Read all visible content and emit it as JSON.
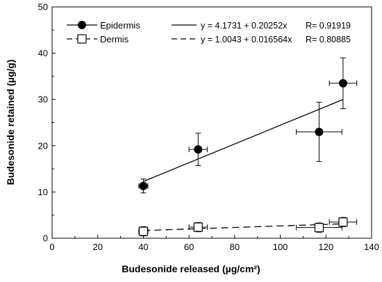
{
  "chart_data": {
    "type": "scatter",
    "title": "",
    "xlabel": "Budesonide released (µg/cm²)",
    "ylabel": "Budesonide retained (µg/g)",
    "xlim": [
      0,
      140
    ],
    "ylim": [
      0,
      50
    ],
    "xticks": [
      "0",
      "20",
      "40",
      "60",
      "80",
      "100",
      "120",
      "140"
    ],
    "yticks": [
      "0",
      "10",
      "20",
      "30",
      "40",
      "50"
    ],
    "grid": false,
    "legend_position": "top-left",
    "series": [
      {
        "name": "Epidermis",
        "marker": "filled-circle",
        "line_style": "solid",
        "color": "#000000",
        "points": [
          {
            "x": 40,
            "y": 11.3,
            "xerr": 2,
            "yerr": 1.5
          },
          {
            "x": 64,
            "y": 19.2,
            "xerr": 4,
            "yerr": 3.5
          },
          {
            "x": 117,
            "y": 23.0,
            "xerr": 10,
            "yerr": 6.4
          },
          {
            "x": 127.5,
            "y": 33.5,
            "xerr": 6,
            "yerr": 5.5
          }
        ],
        "fit": {
          "intercept": 4.1731,
          "slope": 0.20252,
          "x_range": [
            40,
            127.5
          ],
          "equation": "y = 4.1731 + 0.20252x",
          "r_label": "R= 0.91919"
        }
      },
      {
        "name": "Dermis",
        "marker": "open-square",
        "line_style": "dashed",
        "color": "#000000",
        "points": [
          {
            "x": 40,
            "y": 1.5,
            "xerr": 2,
            "yerr": 1.0
          },
          {
            "x": 64,
            "y": 2.4,
            "xerr": 4,
            "yerr": 1.0
          },
          {
            "x": 117,
            "y": 2.3,
            "xerr": 10,
            "yerr": 1.0
          },
          {
            "x": 127.5,
            "y": 3.5,
            "xerr": 6,
            "yerr": 1.0
          }
        ],
        "fit": {
          "intercept": 1.0043,
          "slope": 0.016564,
          "x_range": [
            40,
            127.5
          ],
          "equation": "y = 1.0043 + 0.016564x",
          "r_label": "R= 0.80885"
        }
      }
    ]
  }
}
